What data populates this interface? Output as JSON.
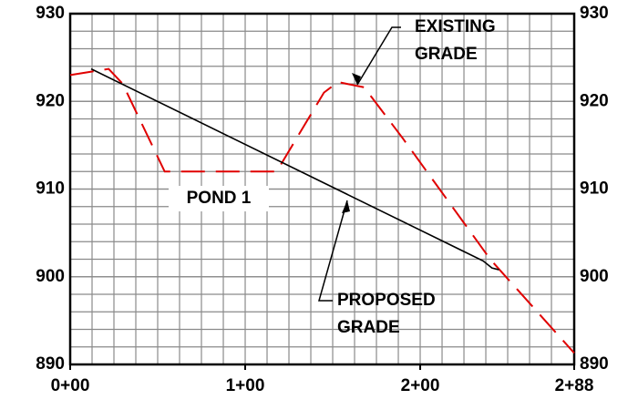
{
  "chart_data": {
    "type": "line",
    "xlim": [
      0,
      288
    ],
    "ylim": [
      890,
      930
    ],
    "xticks": [
      {
        "value": 0,
        "label": "0+00"
      },
      {
        "value": 100,
        "label": "1+00"
      },
      {
        "value": 200,
        "label": "2+00"
      },
      {
        "value": 288,
        "label": "2+88"
      }
    ],
    "yticks": [
      890,
      900,
      910,
      920,
      930
    ],
    "xgrid": [
      12.5,
      25,
      37.5,
      50,
      62.5,
      75,
      87.5,
      100,
      112.5,
      125,
      137.5,
      150,
      162.5,
      175,
      187.5,
      200,
      212.5,
      225,
      237.5,
      250,
      262.5,
      275
    ],
    "ygrid": [
      892,
      894,
      896,
      898,
      900,
      902,
      904,
      906,
      908,
      910,
      912,
      914,
      916,
      918,
      920,
      922,
      924,
      926,
      928
    ],
    "grid": true,
    "series": [
      {
        "name": "EXISTING GRADE",
        "color": "#e00000",
        "dashed": true,
        "x": [
          0,
          22,
          30,
          54,
          118,
          145,
          153,
          168,
          190,
          240,
          288
        ],
        "values": [
          923,
          923.7,
          922,
          912,
          912,
          921,
          922.2,
          921.6,
          915.8,
          902,
          891.3
        ]
      },
      {
        "name": "PROPOSED GRADE",
        "color": "#000000",
        "dashed": false,
        "x": [
          12,
          236,
          241,
          245
        ],
        "values": [
          923.7,
          901.8,
          901.0,
          900.8
        ]
      }
    ],
    "annotations": [
      {
        "lines": [
          "EXISTING",
          "GRADE"
        ]
      },
      {
        "lines": [
          "PROPOSED",
          "GRADE"
        ]
      },
      {
        "lines": [
          "POND 1"
        ]
      }
    ]
  }
}
